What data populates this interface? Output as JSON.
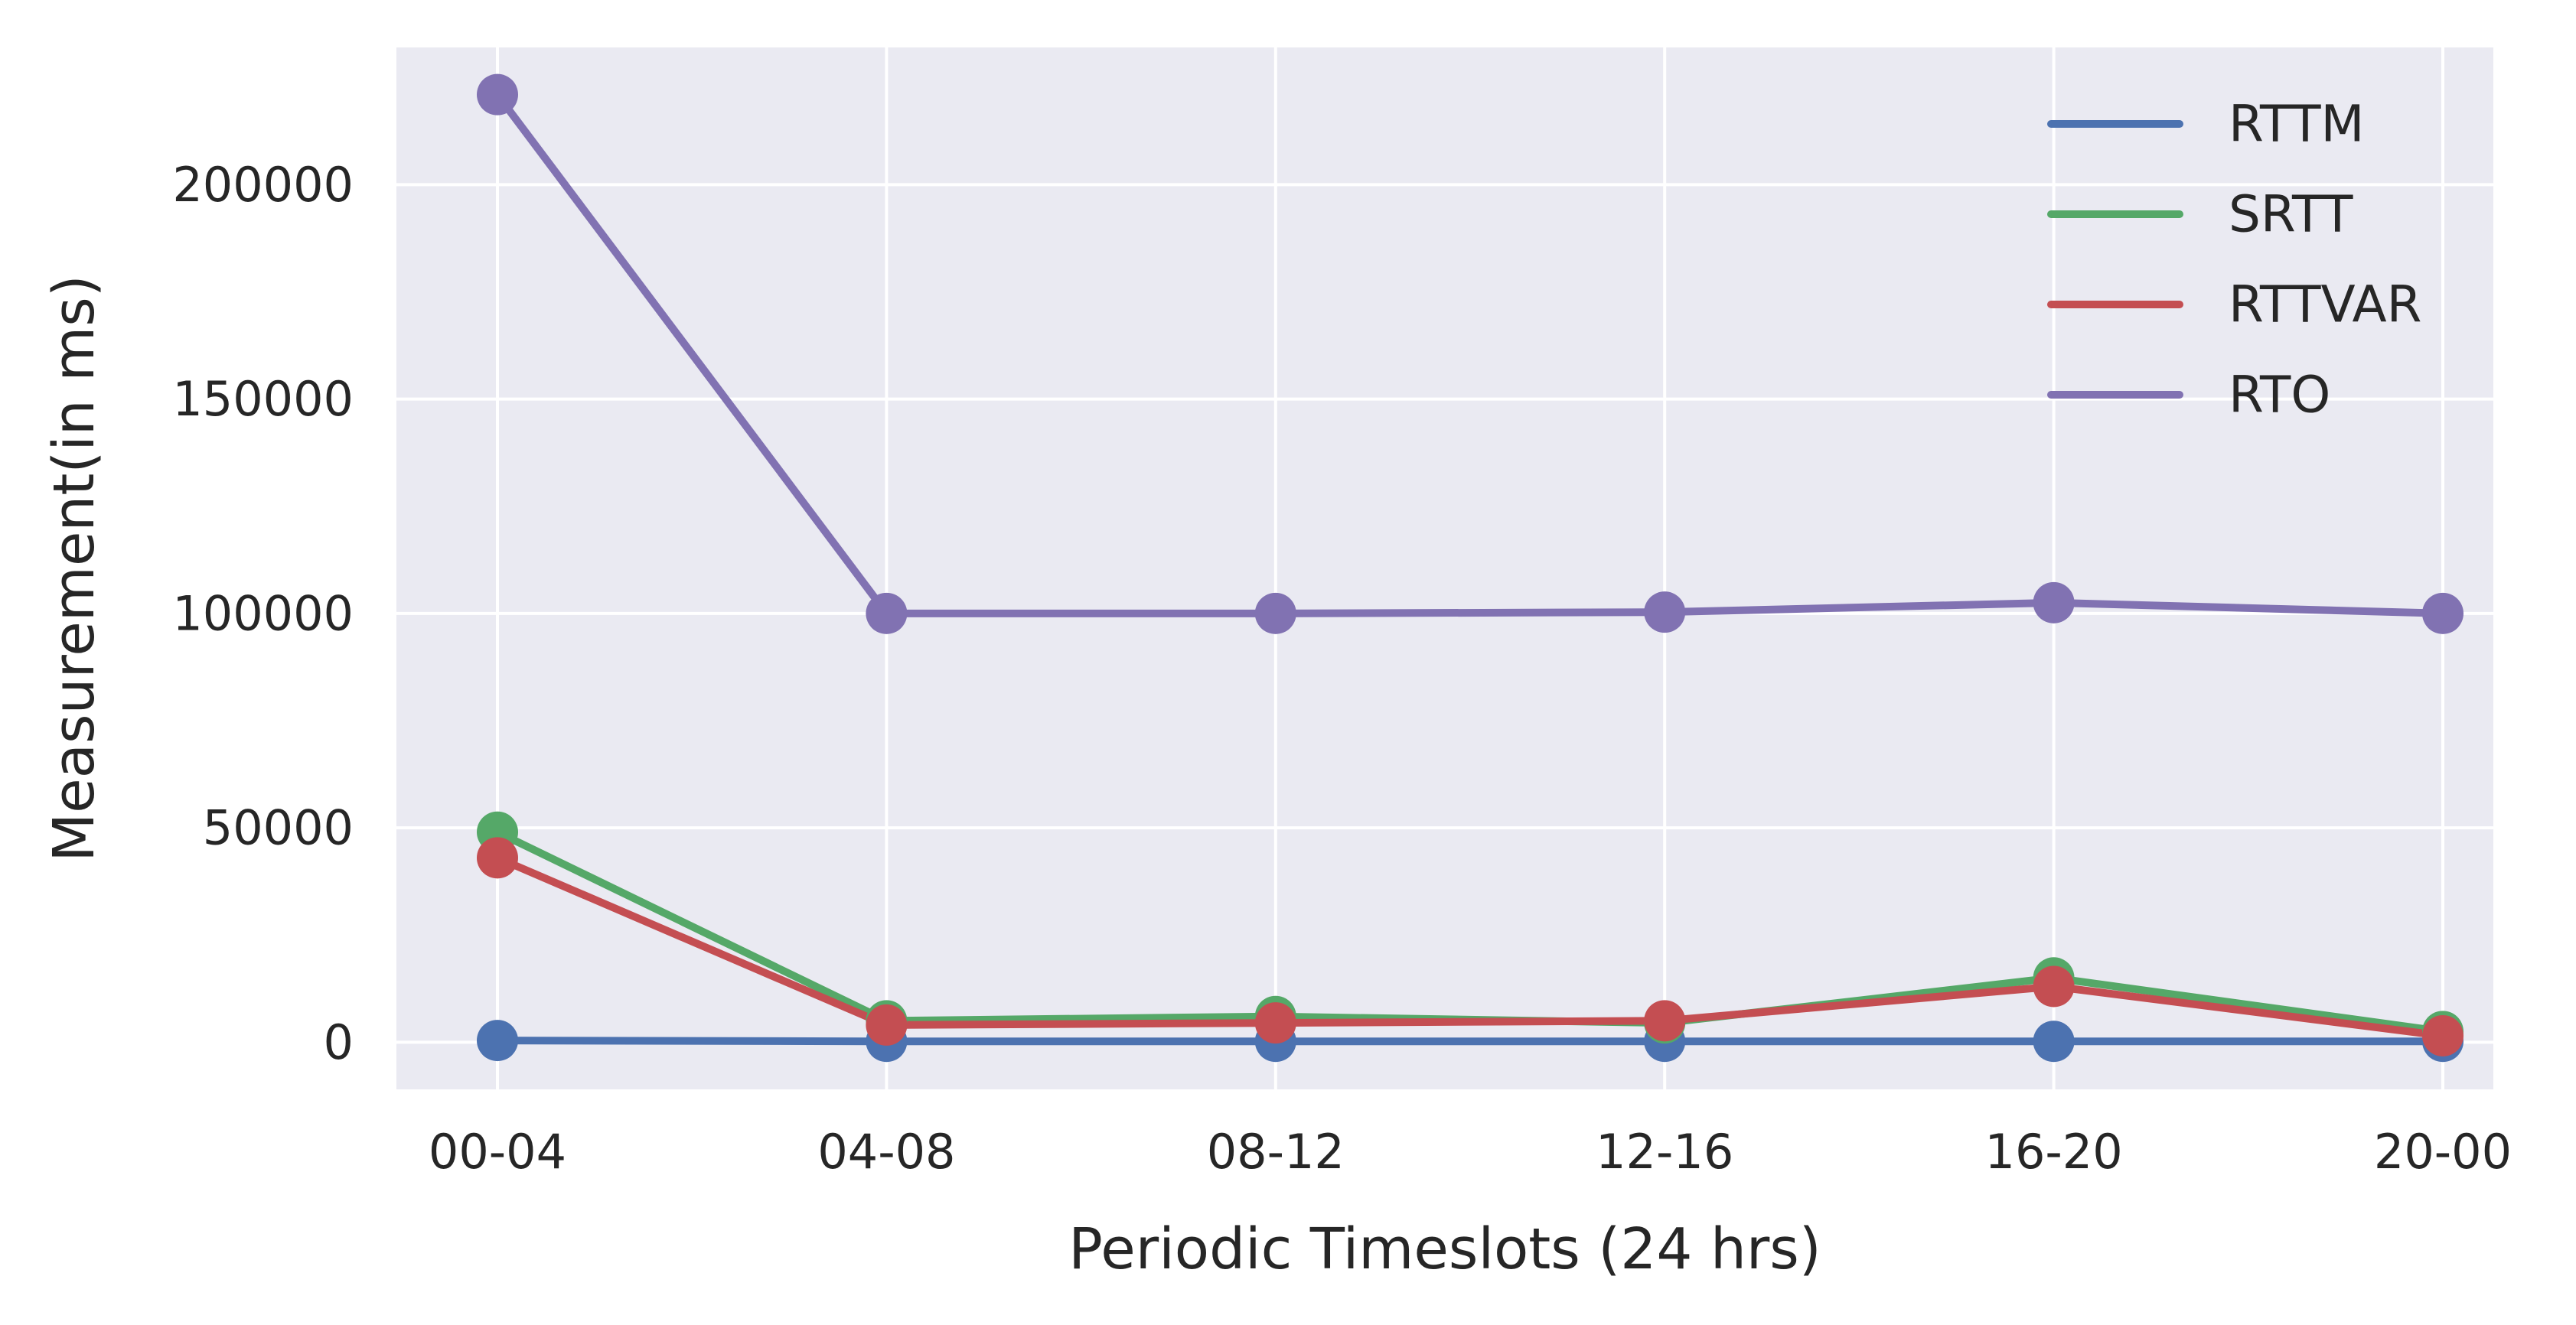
{
  "chart_data": {
    "type": "line",
    "title": "",
    "xlabel": "Periodic Timeslots (24 hrs)",
    "ylabel": "Measurement(in ms)",
    "categories": [
      "00-04",
      "04-08",
      "08-12",
      "12-16",
      "16-20",
      "20-00"
    ],
    "ylim": [
      -11000,
      232000
    ],
    "yticks": [
      0,
      50000,
      100000,
      150000,
      200000
    ],
    "ytick_labels": [
      "0",
      "50000",
      "100000",
      "150000",
      "200000"
    ],
    "grid": true,
    "markers": true,
    "legend_position": "top-right",
    "background_color": "#eaeaf2",
    "grid_color": "#ffffff",
    "series": [
      {
        "name": "RTTM",
        "color": "#4c72b0",
        "values": [
          400,
          200,
          200,
          200,
          200,
          200
        ]
      },
      {
        "name": "SRTT",
        "color": "#55a868",
        "values": [
          49000,
          5000,
          6000,
          4500,
          15000,
          2500
        ]
      },
      {
        "name": "RTTVAR",
        "color": "#c44e52",
        "values": [
          43000,
          4000,
          4500,
          5000,
          13000,
          1500
        ]
      },
      {
        "name": "RTO",
        "color": "#8172b2",
        "values": [
          221000,
          100000,
          100000,
          100300,
          102500,
          100000
        ]
      }
    ]
  }
}
